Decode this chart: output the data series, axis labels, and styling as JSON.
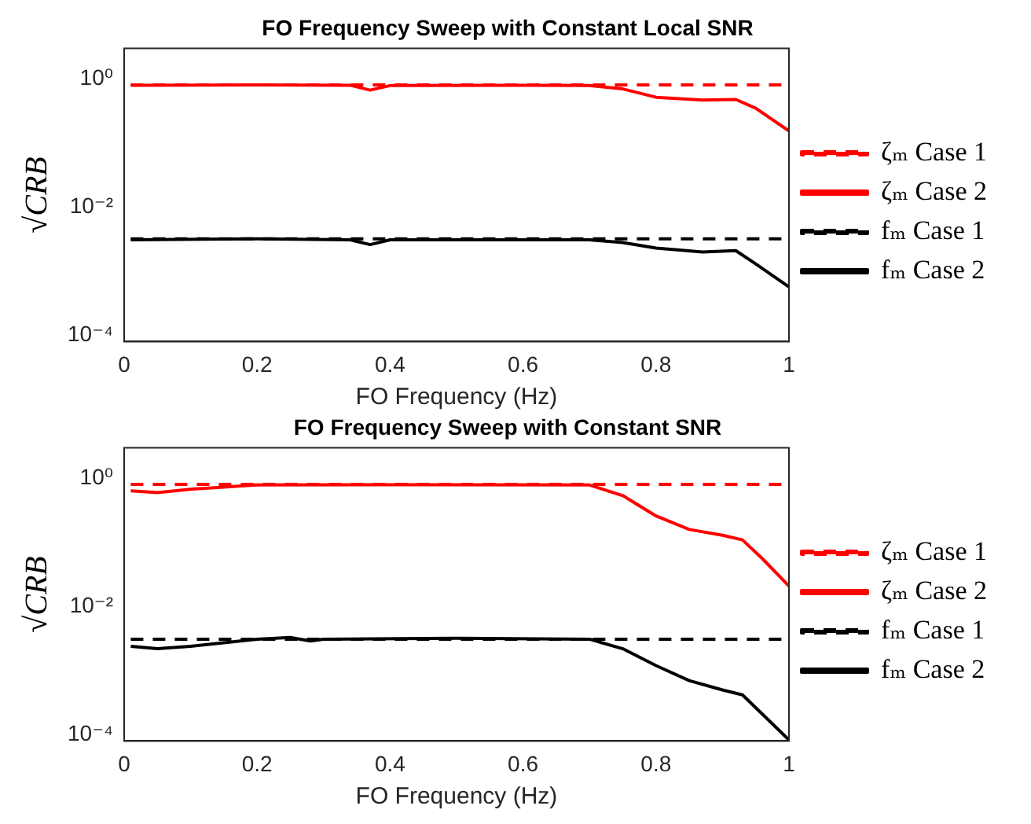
{
  "chart_data": [
    {
      "type": "line",
      "title": "FO Frequency Sweep with Constant Local SNR",
      "xlabel": "FO Frequency (Hz)",
      "ylabel": "√CRB",
      "log": "y",
      "grid": false,
      "legend": "right",
      "xlim": [
        0,
        1
      ],
      "xticks": [
        0,
        0.2,
        0.4,
        0.6,
        0.8,
        1
      ],
      "ylim": [
        8e-05,
        3
      ],
      "yticks": [
        {
          "value": 0.0001,
          "label": "10⁻⁴"
        },
        {
          "value": 0.01,
          "label": "10⁻²"
        },
        {
          "value": 1,
          "label": "10⁰"
        }
      ],
      "series": [
        {
          "name": "ζₘ Case 1",
          "color": "#ff0000",
          "line_style": "dashed",
          "x": [
            0.01,
            1
          ],
          "values": [
            0.81,
            0.81
          ]
        },
        {
          "name": "ζₘ Case 2",
          "color": "#ff0000",
          "line_style": "solid",
          "x": [
            0.01,
            0.2,
            0.34,
            0.37,
            0.4,
            0.6,
            0.7,
            0.75,
            0.8,
            0.87,
            0.92,
            0.95,
            1
          ],
          "values": [
            0.8,
            0.81,
            0.8,
            0.67,
            0.79,
            0.8,
            0.79,
            0.7,
            0.52,
            0.47,
            0.48,
            0.35,
            0.155
          ]
        },
        {
          "name": "fₘ Case 1",
          "color": "#000000",
          "line_style": "dashed",
          "x": [
            0.01,
            1
          ],
          "values": [
            0.0032,
            0.0032
          ]
        },
        {
          "name": "fₘ Case 2",
          "color": "#000000",
          "line_style": "solid",
          "x": [
            0.01,
            0.2,
            0.34,
            0.37,
            0.4,
            0.6,
            0.7,
            0.75,
            0.8,
            0.87,
            0.92,
            0.95,
            1
          ],
          "values": [
            0.0031,
            0.0032,
            0.0031,
            0.0026,
            0.0031,
            0.0031,
            0.0031,
            0.0028,
            0.0023,
            0.002,
            0.0021,
            0.0013,
            0.00057
          ]
        }
      ]
    },
    {
      "type": "line",
      "title": "FO Frequency Sweep with Constant SNR",
      "xlabel": "FO Frequency (Hz)",
      "ylabel": "√CRB",
      "log": "y",
      "grid": false,
      "legend": "right",
      "xlim": [
        0,
        1
      ],
      "xticks": [
        0,
        0.2,
        0.4,
        0.6,
        0.8,
        1
      ],
      "ylim": [
        8e-05,
        3
      ],
      "yticks": [
        {
          "value": 0.0001,
          "label": "10⁻⁴"
        },
        {
          "value": 0.01,
          "label": "10⁻²"
        },
        {
          "value": 1,
          "label": "10⁰"
        }
      ],
      "series": [
        {
          "name": "ζₘ Case 1",
          "color": "#ff0000",
          "line_style": "dashed",
          "x": [
            0.01,
            1
          ],
          "values": [
            0.81,
            0.81
          ]
        },
        {
          "name": "ζₘ Case 2",
          "color": "#ff0000",
          "line_style": "solid",
          "x": [
            0.01,
            0.05,
            0.1,
            0.2,
            0.4,
            0.7,
            0.75,
            0.8,
            0.85,
            0.9,
            0.93,
            0.96,
            1
          ],
          "values": [
            0.64,
            0.6,
            0.68,
            0.79,
            0.8,
            0.79,
            0.54,
            0.26,
            0.16,
            0.13,
            0.11,
            0.056,
            0.021
          ]
        },
        {
          "name": "fₘ Case 1",
          "color": "#000000",
          "line_style": "dashed",
          "x": [
            0.01,
            1
          ],
          "values": [
            0.0031,
            0.0031
          ]
        },
        {
          "name": "fₘ Case 2",
          "color": "#000000",
          "line_style": "solid",
          "x": [
            0.01,
            0.05,
            0.1,
            0.2,
            0.25,
            0.28,
            0.3,
            0.5,
            0.7,
            0.75,
            0.8,
            0.85,
            0.9,
            0.93,
            0.96,
            1
          ],
          "values": [
            0.0024,
            0.0022,
            0.0024,
            0.0031,
            0.0033,
            0.0029,
            0.0031,
            0.0032,
            0.0031,
            0.0022,
            0.0012,
            0.0007,
            0.0005,
            0.00042,
            0.00021,
            8.3e-05
          ]
        }
      ]
    }
  ]
}
